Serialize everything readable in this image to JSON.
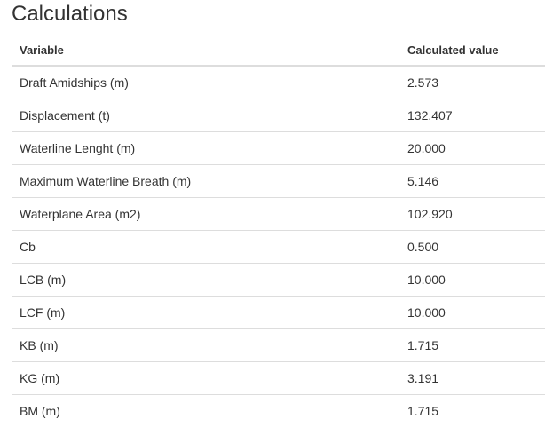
{
  "page": {
    "title": "Calculations"
  },
  "table": {
    "headers": {
      "variable": "Variable",
      "value": "Calculated value"
    },
    "rows": [
      {
        "variable": "Draft Amidships (m)",
        "value": "2.573"
      },
      {
        "variable": "Displacement (t)",
        "value": "132.407"
      },
      {
        "variable": "Waterline Lenght (m)",
        "value": "20.000"
      },
      {
        "variable": "Maximum Waterline Breath (m)",
        "value": "5.146"
      },
      {
        "variable": "Waterplane Area (m2)",
        "value": "102.920"
      },
      {
        "variable": "Cb",
        "value": "0.500"
      },
      {
        "variable": "LCB (m)",
        "value": "10.000"
      },
      {
        "variable": "LCF (m)",
        "value": "10.000"
      },
      {
        "variable": "KB (m)",
        "value": "1.715"
      },
      {
        "variable": "KG (m)",
        "value": "3.191"
      },
      {
        "variable": "BM (m)",
        "value": "1.715"
      }
    ]
  }
}
